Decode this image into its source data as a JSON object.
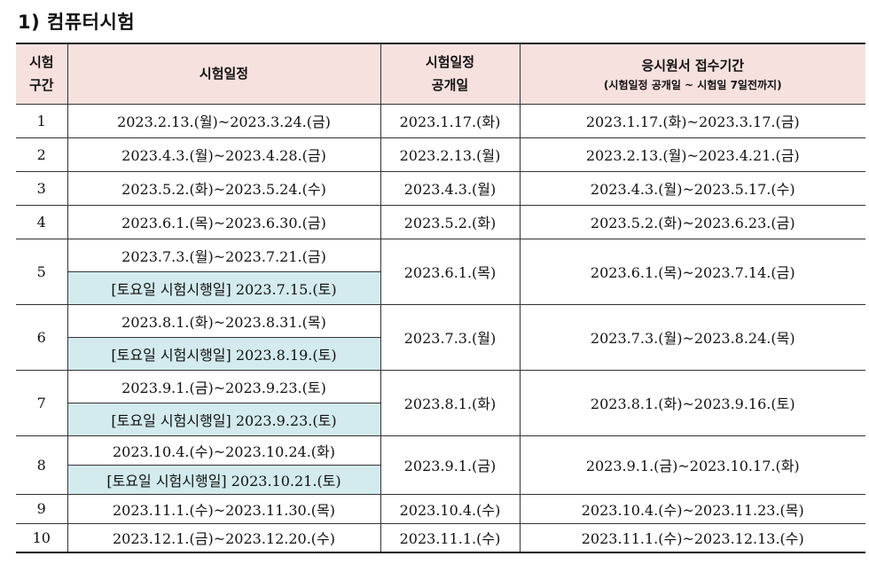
{
  "heading": "1) 컴퓨터시험",
  "table": {
    "headers": {
      "col1_line1": "시험",
      "col1_line2": "구간",
      "col2": "시험일정",
      "col3_line1": "시험일정",
      "col3_line2": "공개일",
      "col4_line1": "응시원서 접수기간",
      "col4_line2": "(시험일정 공개일 ~ 시험일 7일전까지)"
    },
    "rows": [
      {
        "no": "1",
        "schedule": "2023.2.13.(월)~2023.3.24.(금)",
        "announce": "2023.1.17.(화)",
        "apply": "2023.1.17.(화)~2023.3.17.(금)"
      },
      {
        "no": "2",
        "schedule": "2023.4.3.(월)~2023.4.28.(금)",
        "announce": "2023.2.13.(월)",
        "apply": "2023.2.13.(월)~2023.4.21.(금)"
      },
      {
        "no": "3",
        "schedule": "2023.5.2.(화)~2023.5.24.(수)",
        "announce": "2023.4.3.(월)",
        "apply": "2023.4.3.(월)~2023.5.17.(수)"
      },
      {
        "no": "4",
        "schedule": "2023.6.1.(목)~2023.6.30.(금)",
        "announce": "2023.5.2.(화)",
        "apply": "2023.5.2.(화)~2023.6.23.(금)"
      },
      {
        "no": "5",
        "schedule": "2023.7.3.(월)~2023.7.21.(금)",
        "saturday": "[토요일 시험시행일] 2023.7.15.(토)",
        "announce": "2023.6.1.(목)",
        "apply": "2023.6.1.(목)~2023.7.14.(금)"
      },
      {
        "no": "6",
        "schedule": "2023.8.1.(화)~2023.8.31.(목)",
        "saturday": "[토요일 시험시행일] 2023.8.19.(토)",
        "announce": "2023.7.3.(월)",
        "apply": "2023.7.3.(월)~2023.8.24.(목)"
      },
      {
        "no": "7",
        "schedule": "2023.9.1.(금)~2023.9.23.(토)",
        "saturday": "[토요일 시험시행일] 2023.9.23.(토)",
        "announce": "2023.8.1.(화)",
        "apply": "2023.8.1.(화)~2023.9.16.(토)"
      },
      {
        "no": "8",
        "schedule": "2023.10.4.(수)~2023.10.24.(화)",
        "saturday": "[토요일 시험시행일] 2023.10.21.(토)",
        "announce": "2023.9.1.(금)",
        "apply": "2023.9.1.(금)~2023.10.17.(화)"
      },
      {
        "no": "9",
        "schedule": "2023.11.1.(수)~2023.11.30.(목)",
        "announce": "2023.10.4.(수)",
        "apply": "2023.10.4.(수)~2023.11.23.(목)"
      },
      {
        "no": "10",
        "schedule": "2023.12.1.(금)~2023.12.20.(수)",
        "announce": "2023.11.1.(수)",
        "apply": "2023.11.1.(수)~2023.12.13.(수)"
      }
    ]
  },
  "colors": {
    "header_bg": "#f6e1de",
    "saturday_bg": "#d3ebee",
    "border": "#333333"
  }
}
